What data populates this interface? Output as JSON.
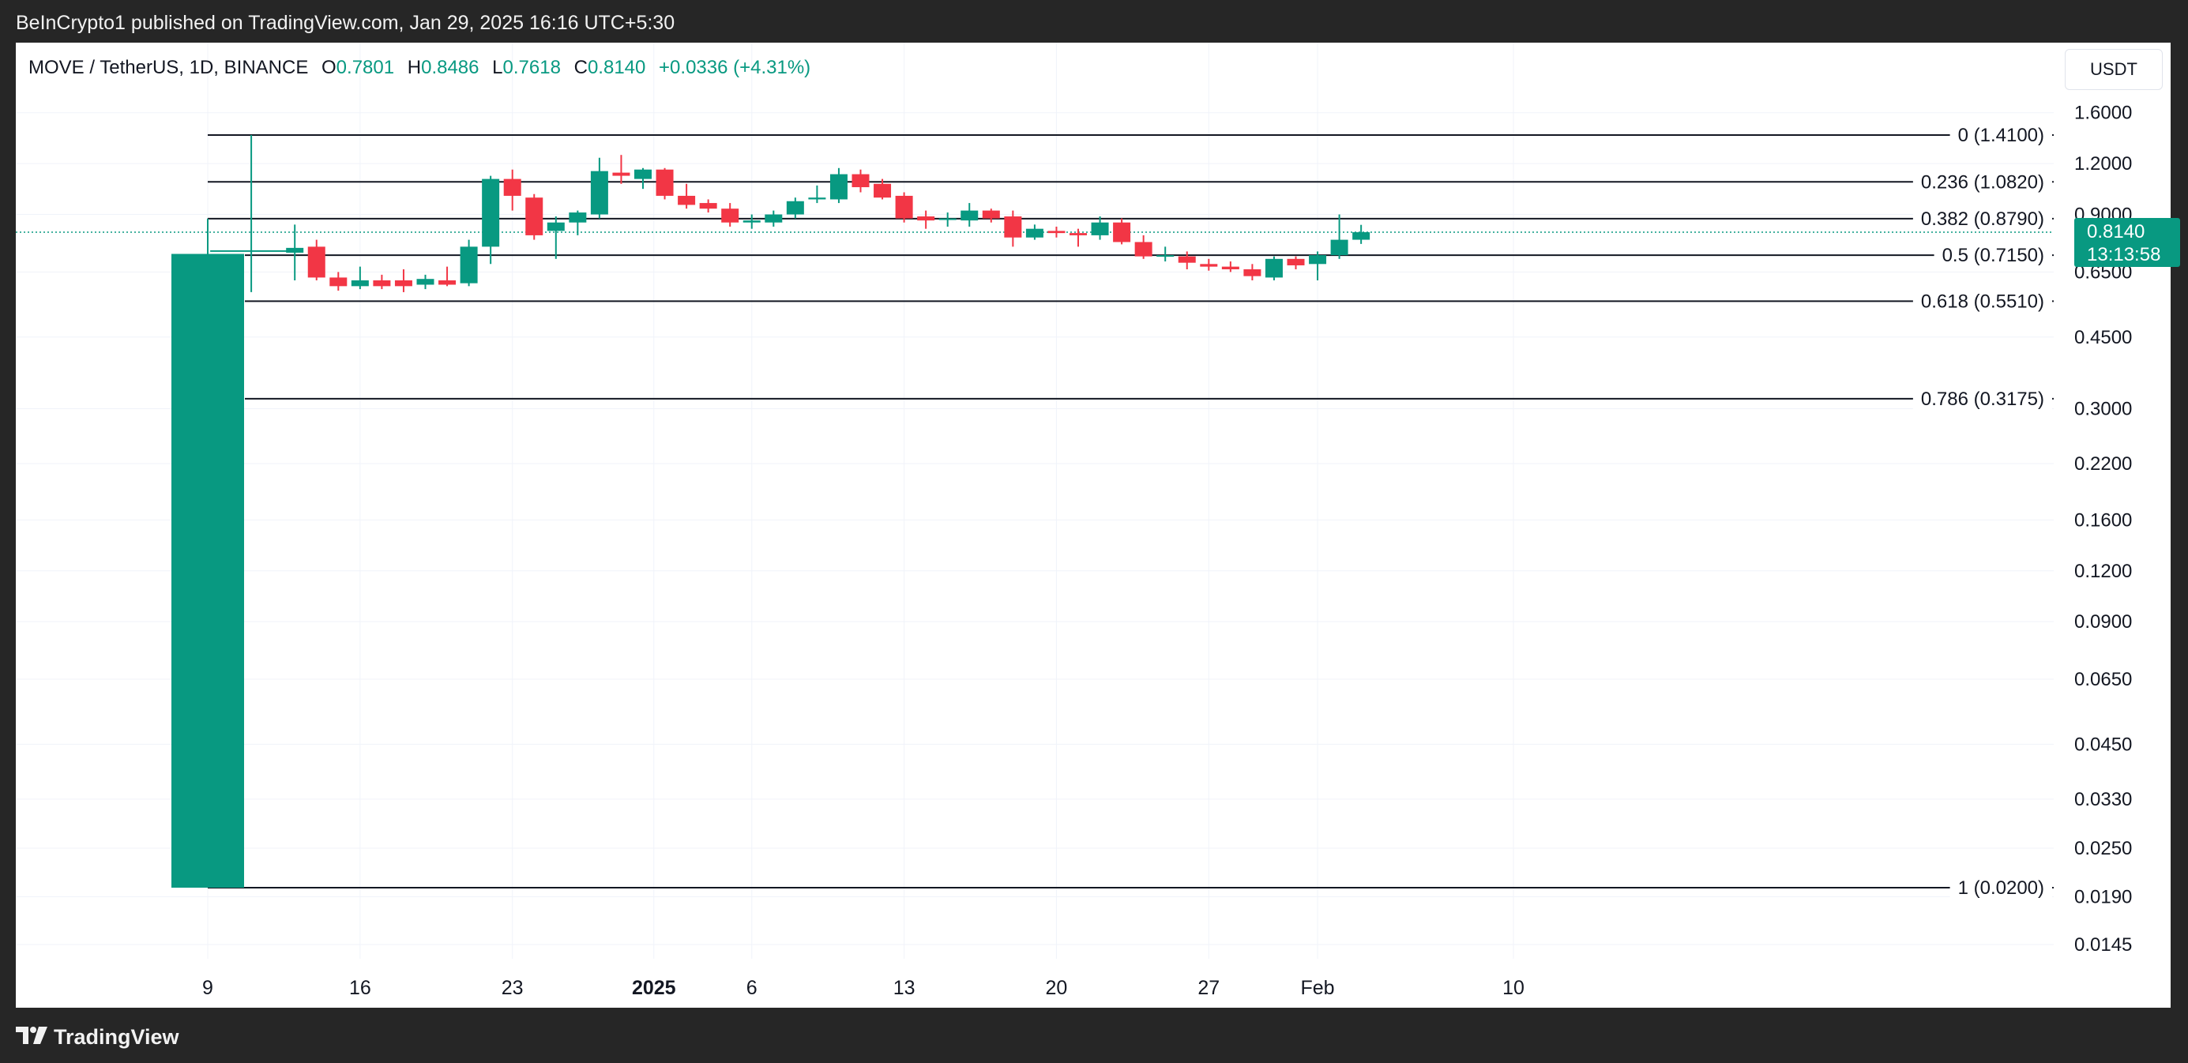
{
  "header": {
    "published_text": "BeInCrypto1 published on TradingView.com, Jan 29, 2025 16:16 UTC+5:30"
  },
  "legend": {
    "symbol": "MOVE / TetherUS, 1D, BINANCE",
    "o_label": "O",
    "o_value": "0.7801",
    "h_label": "H",
    "h_value": "0.8486",
    "l_label": "L",
    "l_value": "0.7618",
    "c_label": "C",
    "c_value": "0.8140",
    "change": "+0.0336 (+4.31%)"
  },
  "currency_button": "USDT",
  "price_tag": {
    "price": "0.8140",
    "countdown": "13:13:58"
  },
  "footer": {
    "brand": "TradingView"
  },
  "colors": {
    "up": "#089981",
    "down": "#f23645",
    "fib_line": "#131722",
    "grid": "#f0f3fa",
    "axis_text": "#131722"
  },
  "chart_data": {
    "type": "candlestick",
    "title": "MOVE / TetherUS, 1D, BINANCE",
    "y_scale": "log",
    "ylim": [
      0.0125,
      1.9
    ],
    "y_ticks": [
      "1.6000",
      "1.2000",
      "0.9000",
      "0.6500",
      "0.4500",
      "0.3000",
      "0.2200",
      "0.1600",
      "0.1200",
      "0.0900",
      "0.0650",
      "0.0450",
      "0.0330",
      "0.0250",
      "0.0190",
      "0.0145"
    ],
    "x_ticks": [
      {
        "label": "9",
        "day": 0,
        "bold": false
      },
      {
        "label": "16",
        "day": 7,
        "bold": false
      },
      {
        "label": "23",
        "day": 14,
        "bold": false
      },
      {
        "label": "2025",
        "day": 20.5,
        "bold": true
      },
      {
        "label": "6",
        "day": 25,
        "bold": false
      },
      {
        "label": "13",
        "day": 32,
        "bold": false
      },
      {
        "label": "20",
        "day": 39,
        "bold": false
      },
      {
        "label": "27",
        "day": 46,
        "bold": false
      },
      {
        "label": "Feb",
        "day": 51,
        "bold": false
      },
      {
        "label": "10",
        "day": 60,
        "bold": false
      }
    ],
    "fib_levels": [
      {
        "label": "0 (1.4100)",
        "value": 1.41
      },
      {
        "label": "0.236 (1.0820)",
        "value": 1.082
      },
      {
        "label": "0.382 (0.8790)",
        "value": 0.879
      },
      {
        "label": "0.5 (0.7150)",
        "value": 0.715
      },
      {
        "label": "0.618 (0.5510)",
        "value": 0.551
      },
      {
        "label": "0.786 (0.3175)",
        "value": 0.3175
      },
      {
        "label": "1 (0.0200)",
        "value": 0.02
      }
    ],
    "current_price": 0.814,
    "candles": [
      {
        "day": 0,
        "o": 0.02,
        "h": 0.879,
        "l": 0.02,
        "c": 0.72
      },
      {
        "day": 2,
        "o": 0.73,
        "h": 1.41,
        "l": 0.58,
        "c": 0.735
      },
      {
        "day": 4,
        "o": 0.725,
        "h": 0.85,
        "l": 0.62,
        "c": 0.745
      },
      {
        "day": 5,
        "o": 0.75,
        "h": 0.78,
        "l": 0.62,
        "c": 0.63
      },
      {
        "day": 6,
        "o": 0.63,
        "h": 0.65,
        "l": 0.585,
        "c": 0.6
      },
      {
        "day": 7,
        "o": 0.6,
        "h": 0.67,
        "l": 0.59,
        "c": 0.62
      },
      {
        "day": 8,
        "o": 0.62,
        "h": 0.64,
        "l": 0.59,
        "c": 0.6
      },
      {
        "day": 9,
        "o": 0.62,
        "h": 0.66,
        "l": 0.58,
        "c": 0.6
      },
      {
        "day": 10,
        "o": 0.605,
        "h": 0.64,
        "l": 0.59,
        "c": 0.625
      },
      {
        "day": 11,
        "o": 0.62,
        "h": 0.67,
        "l": 0.6,
        "c": 0.605
      },
      {
        "day": 12,
        "o": 0.61,
        "h": 0.78,
        "l": 0.6,
        "c": 0.75
      },
      {
        "day": 13,
        "o": 0.75,
        "h": 1.12,
        "l": 0.68,
        "c": 1.1
      },
      {
        "day": 14,
        "o": 1.1,
        "h": 1.16,
        "l": 0.92,
        "c": 1.0
      },
      {
        "day": 15,
        "o": 0.99,
        "h": 1.01,
        "l": 0.78,
        "c": 0.8
      },
      {
        "day": 16,
        "o": 0.82,
        "h": 0.89,
        "l": 0.7,
        "c": 0.86
      },
      {
        "day": 17,
        "o": 0.86,
        "h": 0.92,
        "l": 0.8,
        "c": 0.91
      },
      {
        "day": 18,
        "o": 0.9,
        "h": 1.24,
        "l": 0.88,
        "c": 1.15
      },
      {
        "day": 19,
        "o": 1.14,
        "h": 1.26,
        "l": 1.07,
        "c": 1.12
      },
      {
        "day": 20,
        "o": 1.1,
        "h": 1.17,
        "l": 1.04,
        "c": 1.16
      },
      {
        "day": 21,
        "o": 1.16,
        "h": 1.17,
        "l": 0.98,
        "c": 1.0
      },
      {
        "day": 22,
        "o": 1.0,
        "h": 1.07,
        "l": 0.93,
        "c": 0.95
      },
      {
        "day": 23,
        "o": 0.96,
        "h": 0.98,
        "l": 0.91,
        "c": 0.93
      },
      {
        "day": 24,
        "o": 0.93,
        "h": 0.96,
        "l": 0.84,
        "c": 0.86
      },
      {
        "day": 25,
        "o": 0.86,
        "h": 0.9,
        "l": 0.83,
        "c": 0.87
      },
      {
        "day": 26,
        "o": 0.86,
        "h": 0.92,
        "l": 0.84,
        "c": 0.9
      },
      {
        "day": 27,
        "o": 0.9,
        "h": 0.99,
        "l": 0.88,
        "c": 0.97
      },
      {
        "day": 28,
        "o": 0.98,
        "h": 1.06,
        "l": 0.96,
        "c": 0.99
      },
      {
        "day": 29,
        "o": 0.98,
        "h": 1.17,
        "l": 0.96,
        "c": 1.13
      },
      {
        "day": 30,
        "o": 1.13,
        "h": 1.16,
        "l": 1.02,
        "c": 1.05
      },
      {
        "day": 31,
        "o": 1.07,
        "h": 1.1,
        "l": 0.98,
        "c": 0.99
      },
      {
        "day": 32,
        "o": 1.0,
        "h": 1.02,
        "l": 0.86,
        "c": 0.88
      },
      {
        "day": 33,
        "o": 0.89,
        "h": 0.92,
        "l": 0.83,
        "c": 0.87
      },
      {
        "day": 34,
        "o": 0.88,
        "h": 0.91,
        "l": 0.84,
        "c": 0.88
      },
      {
        "day": 35,
        "o": 0.87,
        "h": 0.96,
        "l": 0.84,
        "c": 0.92
      },
      {
        "day": 36,
        "o": 0.92,
        "h": 0.93,
        "l": 0.86,
        "c": 0.88
      },
      {
        "day": 37,
        "o": 0.89,
        "h": 0.92,
        "l": 0.75,
        "c": 0.79
      },
      {
        "day": 38,
        "o": 0.79,
        "h": 0.85,
        "l": 0.78,
        "c": 0.83
      },
      {
        "day": 39,
        "o": 0.82,
        "h": 0.84,
        "l": 0.79,
        "c": 0.81
      },
      {
        "day": 40,
        "o": 0.81,
        "h": 0.83,
        "l": 0.75,
        "c": 0.8
      },
      {
        "day": 41,
        "o": 0.8,
        "h": 0.89,
        "l": 0.78,
        "c": 0.86
      },
      {
        "day": 42,
        "o": 0.86,
        "h": 0.88,
        "l": 0.76,
        "c": 0.77
      },
      {
        "day": 43,
        "o": 0.77,
        "h": 0.8,
        "l": 0.7,
        "c": 0.71
      },
      {
        "day": 44,
        "o": 0.71,
        "h": 0.75,
        "l": 0.69,
        "c": 0.715
      },
      {
        "day": 45,
        "o": 0.71,
        "h": 0.73,
        "l": 0.66,
        "c": 0.685
      },
      {
        "day": 46,
        "o": 0.68,
        "h": 0.7,
        "l": 0.655,
        "c": 0.67
      },
      {
        "day": 47,
        "o": 0.67,
        "h": 0.69,
        "l": 0.65,
        "c": 0.66
      },
      {
        "day": 48,
        "o": 0.66,
        "h": 0.68,
        "l": 0.62,
        "c": 0.635
      },
      {
        "day": 49,
        "o": 0.63,
        "h": 0.71,
        "l": 0.62,
        "c": 0.7
      },
      {
        "day": 50,
        "o": 0.7,
        "h": 0.71,
        "l": 0.66,
        "c": 0.675
      },
      {
        "day": 51,
        "o": 0.68,
        "h": 0.73,
        "l": 0.62,
        "c": 0.715
      },
      {
        "day": 52,
        "o": 0.715,
        "h": 0.9,
        "l": 0.7,
        "c": 0.78
      },
      {
        "day": 53,
        "o": 0.7801,
        "h": 0.8486,
        "l": 0.7618,
        "c": 0.814
      }
    ]
  }
}
